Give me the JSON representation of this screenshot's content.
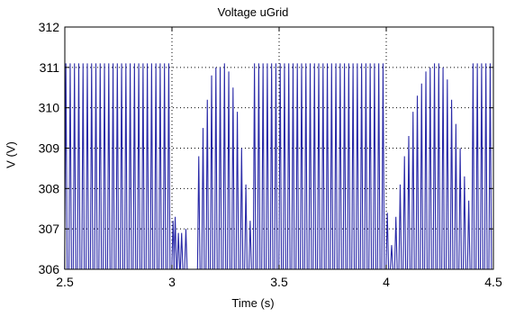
{
  "chart_data": {
    "type": "line",
    "title": "Voltage uGrid",
    "xlabel": "Time (s)",
    "ylabel": "V (V)",
    "xlim": [
      2.5,
      4.5
    ],
    "ylim": [
      306,
      312
    ],
    "xticks": [
      2.5,
      3,
      3.5,
      4,
      4.5
    ],
    "xtick_labels": [
      "2.5",
      "3",
      "3.5",
      "4",
      "4.5"
    ],
    "yticks": [
      306,
      307,
      308,
      309,
      310,
      311,
      312
    ],
    "ytick_labels": [
      "306",
      "307",
      "308",
      "309",
      "310",
      "311",
      "312"
    ],
    "grid": true,
    "grid_style": "dotted",
    "line_color": "#2a2aa8",
    "series": [
      {
        "name": "",
        "peaks": [
          {
            "x": 2.505,
            "y": 311.1
          },
          {
            "x": 2.525,
            "y": 311.1
          },
          {
            "x": 2.545,
            "y": 311.1
          },
          {
            "x": 2.565,
            "y": 311.1
          },
          {
            "x": 2.585,
            "y": 311.1
          },
          {
            "x": 2.605,
            "y": 311.1
          },
          {
            "x": 2.625,
            "y": 311.1
          },
          {
            "x": 2.645,
            "y": 311.1
          },
          {
            "x": 2.665,
            "y": 311.1
          },
          {
            "x": 2.685,
            "y": 311.1
          },
          {
            "x": 2.705,
            "y": 311.1
          },
          {
            "x": 2.725,
            "y": 311.1
          },
          {
            "x": 2.745,
            "y": 311.1
          },
          {
            "x": 2.765,
            "y": 311.1
          },
          {
            "x": 2.785,
            "y": 311.1
          },
          {
            "x": 2.805,
            "y": 311.1
          },
          {
            "x": 2.825,
            "y": 311.1
          },
          {
            "x": 2.845,
            "y": 311.1
          },
          {
            "x": 2.865,
            "y": 311.1
          },
          {
            "x": 2.885,
            "y": 311.1
          },
          {
            "x": 2.905,
            "y": 311.1
          },
          {
            "x": 2.925,
            "y": 311.1
          },
          {
            "x": 2.945,
            "y": 311.1
          },
          {
            "x": 2.965,
            "y": 311.1
          },
          {
            "x": 2.985,
            "y": 311.1
          },
          {
            "x": 3.005,
            "y": 307.2
          },
          {
            "x": 3.015,
            "y": 307.3
          },
          {
            "x": 3.03,
            "y": 306.9
          },
          {
            "x": 3.045,
            "y": 306.9
          },
          {
            "x": 3.065,
            "y": 307.0
          },
          {
            "x": 3.125,
            "y": 308.8
          },
          {
            "x": 3.145,
            "y": 309.5
          },
          {
            "x": 3.165,
            "y": 310.2
          },
          {
            "x": 3.185,
            "y": 310.8
          },
          {
            "x": 3.205,
            "y": 311.0
          },
          {
            "x": 3.225,
            "y": 311.0
          },
          {
            "x": 3.245,
            "y": 311.1
          },
          {
            "x": 3.265,
            "y": 310.9
          },
          {
            "x": 3.285,
            "y": 310.5
          },
          {
            "x": 3.305,
            "y": 309.9
          },
          {
            "x": 3.325,
            "y": 309.0
          },
          {
            "x": 3.345,
            "y": 308.1
          },
          {
            "x": 3.365,
            "y": 307.2
          },
          {
            "x": 3.385,
            "y": 311.1
          },
          {
            "x": 3.405,
            "y": 311.1
          },
          {
            "x": 3.425,
            "y": 311.1
          },
          {
            "x": 3.445,
            "y": 311.1
          },
          {
            "x": 3.465,
            "y": 311.1
          },
          {
            "x": 3.485,
            "y": 311.1
          },
          {
            "x": 3.505,
            "y": 311.1
          },
          {
            "x": 3.525,
            "y": 311.1
          },
          {
            "x": 3.545,
            "y": 311.1
          },
          {
            "x": 3.565,
            "y": 311.1
          },
          {
            "x": 3.585,
            "y": 311.1
          },
          {
            "x": 3.605,
            "y": 311.1
          },
          {
            "x": 3.625,
            "y": 311.1
          },
          {
            "x": 3.645,
            "y": 311.1
          },
          {
            "x": 3.665,
            "y": 311.1
          },
          {
            "x": 3.685,
            "y": 311.1
          },
          {
            "x": 3.705,
            "y": 311.1
          },
          {
            "x": 3.725,
            "y": 311.1
          },
          {
            "x": 3.745,
            "y": 311.1
          },
          {
            "x": 3.765,
            "y": 311.1
          },
          {
            "x": 3.785,
            "y": 311.1
          },
          {
            "x": 3.805,
            "y": 311.1
          },
          {
            "x": 3.825,
            "y": 311.1
          },
          {
            "x": 3.845,
            "y": 311.1
          },
          {
            "x": 3.865,
            "y": 311.1
          },
          {
            "x": 3.885,
            "y": 311.1
          },
          {
            "x": 3.905,
            "y": 311.1
          },
          {
            "x": 3.925,
            "y": 311.1
          },
          {
            "x": 3.945,
            "y": 311.1
          },
          {
            "x": 3.965,
            "y": 311.1
          },
          {
            "x": 3.985,
            "y": 311.1
          },
          {
            "x": 4.005,
            "y": 307.4
          },
          {
            "x": 4.025,
            "y": 306.6
          },
          {
            "x": 4.045,
            "y": 307.3
          },
          {
            "x": 4.065,
            "y": 308.1
          },
          {
            "x": 4.085,
            "y": 308.8
          },
          {
            "x": 4.105,
            "y": 309.3
          },
          {
            "x": 4.125,
            "y": 309.9
          },
          {
            "x": 4.145,
            "y": 310.3
          },
          {
            "x": 4.165,
            "y": 310.6
          },
          {
            "x": 4.185,
            "y": 310.9
          },
          {
            "x": 4.205,
            "y": 311.0
          },
          {
            "x": 4.225,
            "y": 311.1
          },
          {
            "x": 4.245,
            "y": 311.1
          },
          {
            "x": 4.265,
            "y": 311.0
          },
          {
            "x": 4.285,
            "y": 310.7
          },
          {
            "x": 4.305,
            "y": 310.2
          },
          {
            "x": 4.325,
            "y": 309.6
          },
          {
            "x": 4.345,
            "y": 309.0
          },
          {
            "x": 4.365,
            "y": 308.3
          },
          {
            "x": 4.385,
            "y": 307.7
          },
          {
            "x": 4.405,
            "y": 311.1
          },
          {
            "x": 4.425,
            "y": 311.1
          },
          {
            "x": 4.445,
            "y": 311.1
          },
          {
            "x": 4.465,
            "y": 311.1
          },
          {
            "x": 4.485,
            "y": 311.1
          }
        ]
      }
    ]
  }
}
